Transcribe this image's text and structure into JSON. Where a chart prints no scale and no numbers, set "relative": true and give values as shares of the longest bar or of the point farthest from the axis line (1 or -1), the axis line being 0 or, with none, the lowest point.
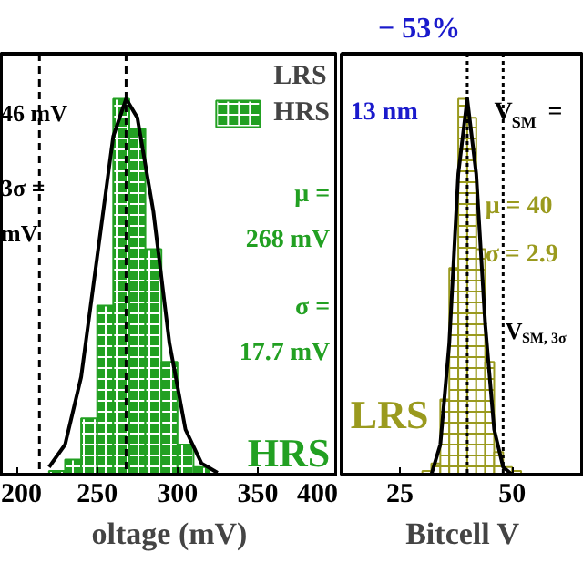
{
  "chart_data": [
    {
      "type": "histogram",
      "relative": true,
      "xlabel": "oltage (mV)",
      "xlim": [
        190,
        400
      ],
      "xticks": [
        200,
        250,
        300,
        350,
        400
      ],
      "tick_labels": "x",
      "legend": "top right",
      "grid": false,
      "series": [
        {
          "name": "HRS",
          "color": "#22a022",
          "bins": [
            220,
            230,
            240,
            250,
            260,
            270,
            280,
            290,
            300,
            310,
            320
          ],
          "values": [
            0.01,
            0.04,
            0.15,
            0.45,
            1.0,
            0.92,
            0.6,
            0.3,
            0.08,
            0.02
          ]
        },
        {
          "type": "line",
          "color": "#000000",
          "x": [
            220,
            230,
            240,
            250,
            260,
            268,
            275,
            285,
            295,
            305,
            315,
            325
          ],
          "values": [
            0.02,
            0.08,
            0.26,
            0.58,
            0.9,
            1.0,
            0.95,
            0.7,
            0.35,
            0.12,
            0.03,
            0.005
          ]
        }
      ],
      "ref_lines": [
        {
          "axis": "x",
          "value": 268,
          "line_style": "dashed"
        },
        {
          "axis": "x",
          "value": 214,
          "line_style": "dashed"
        }
      ],
      "annotations": [
        "46 mV",
        "3σ =",
        "mV",
        "μ =",
        "268 mV",
        "σ =",
        "17.7 mV",
        "HRS"
      ]
    },
    {
      "type": "histogram",
      "relative": true,
      "title": "− 53%",
      "xlabel": "Bitcell V",
      "xlim": [
        12,
        66
      ],
      "xticks": [
        25,
        50
      ],
      "tick_labels": "x",
      "grid": false,
      "series": [
        {
          "name": "LRS",
          "color": "#9a9a1e",
          "bins": [
            30,
            32,
            34,
            36,
            38,
            40,
            42,
            44,
            46,
            48,
            50,
            52
          ],
          "values": [
            0.01,
            0.03,
            0.2,
            0.55,
            1.0,
            0.95,
            0.6,
            0.3,
            0.06,
            0.02,
            0.01
          ]
        },
        {
          "type": "line",
          "color": "#000000",
          "x": [
            32,
            34,
            36,
            38,
            40,
            42,
            44,
            46,
            48,
            50
          ],
          "values": [
            0.0,
            0.08,
            0.35,
            0.8,
            1.0,
            0.8,
            0.4,
            0.12,
            0.02,
            0.0
          ]
        }
      ],
      "ref_lines": [
        {
          "axis": "x",
          "value": 40,
          "line_style": "dotted"
        },
        {
          "axis": "x",
          "value": 48,
          "line_style": "dotted"
        }
      ],
      "annotations": [
        "13 nm",
        "V$_{SM}$ =",
        "μ = 40",
        "σ = 2.9",
        "V$_{SM, 3σ}$",
        "LRS"
      ]
    }
  ]
}
